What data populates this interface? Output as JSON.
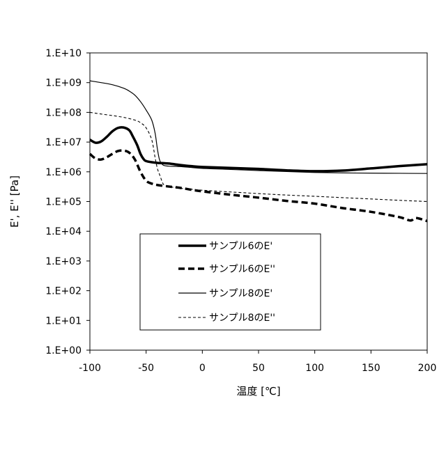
{
  "chart_data": {
    "type": "line",
    "title": "",
    "xlabel": "温度 [℃]",
    "ylabel": "E', E'' [Pa]",
    "xlim": [
      -100,
      200
    ],
    "ylim_log10": [
      0,
      10
    ],
    "y_scale": "log",
    "grid": false,
    "legend_position": "lower-center",
    "x_ticks": [
      "-100",
      "-50",
      "0",
      "50",
      "100",
      "150",
      "200"
    ],
    "y_ticks": [
      "1.E+00",
      "1.E+01",
      "1.E+02",
      "1.E+03",
      "1.E+04",
      "1.E+05",
      "1.E+06",
      "1.E+07",
      "1.E+08",
      "1.E+09",
      "1.E+10"
    ],
    "series": [
      {
        "name": "サンプル6のE'",
        "color": "#000000",
        "style": "solid-thick",
        "x": [
          -100,
          -95,
          -90,
          -85,
          -80,
          -75,
          -70,
          -65,
          -62,
          -58,
          -55,
          -52,
          -50,
          -45,
          -40,
          -30,
          -20,
          -10,
          0,
          25,
          50,
          75,
          100,
          125,
          150,
          175,
          200
        ],
        "y": [
          12000000.0,
          9500000.0,
          10500000.0,
          15000000.0,
          23000000.0,
          30000000.0,
          31000000.0,
          25000000.0,
          16000000.0,
          8000000.0,
          4000000.0,
          2600000.0,
          2300000.0,
          2100000.0,
          2000000.0,
          1900000.0,
          1700000.0,
          1550000.0,
          1450000.0,
          1350000.0,
          1250000.0,
          1120000.0,
          1050000.0,
          1100000.0,
          1300000.0,
          1550000.0,
          1800000.0
        ]
      },
      {
        "name": "サンプル6のE''",
        "color": "#000000",
        "style": "dashed-thick",
        "x": [
          -100,
          -95,
          -90,
          -85,
          -80,
          -75,
          -70,
          -65,
          -60,
          -55,
          -50,
          -45,
          -40,
          -30,
          -20,
          -10,
          0,
          25,
          50,
          75,
          100,
          125,
          150,
          175,
          185,
          190,
          200
        ],
        "y": [
          4000000.0,
          2800000.0,
          2600000.0,
          3100000.0,
          4000000.0,
          5000000.0,
          5200000.0,
          4400000.0,
          2600000.0,
          1000000.0,
          500000.0,
          400000.0,
          360000.0,
          320000.0,
          290000.0,
          250000.0,
          220000.0,
          170000.0,
          135000.0,
          105000.0,
          85000.0,
          60000.0,
          45000.0,
          30000.0,
          23000.0,
          28000.0,
          22000.0
        ]
      },
      {
        "name": "サンプル8のE'",
        "color": "#000000",
        "style": "solid-thin",
        "x": [
          -100,
          -90,
          -80,
          -70,
          -65,
          -60,
          -55,
          -50,
          -45,
          -42,
          -40,
          -38,
          -35,
          -30,
          -20,
          -10,
          0,
          25,
          50,
          75,
          100,
          125,
          150,
          175,
          200
        ],
        "y": [
          1150000000.0,
          1000000000.0,
          850000000.0,
          650000000.0,
          520000000.0,
          380000000.0,
          230000000.0,
          120000000.0,
          55000000.0,
          20000000.0,
          6000000.0,
          2500000.0,
          1700000.0,
          1550000.0,
          1500000.0,
          1400000.0,
          1300000.0,
          1200000.0,
          1100000.0,
          1020000.0,
          950000.0,
          920000.0,
          900000.0,
          890000.0,
          880000.0
        ]
      },
      {
        "name": "サンプル8のE''",
        "color": "#000000",
        "style": "dashed-thin",
        "x": [
          -100,
          -90,
          -80,
          -70,
          -60,
          -55,
          -50,
          -45,
          -42,
          -40,
          -38,
          -35,
          -33,
          -30,
          -20,
          -10,
          0,
          25,
          50,
          75,
          100,
          125,
          150,
          175,
          200
        ],
        "y": [
          100000000.0,
          88000000.0,
          78000000.0,
          68000000.0,
          55000000.0,
          45000000.0,
          30000000.0,
          12000000.0,
          3000000.0,
          1300000.0,
          800000.0,
          400000.0,
          350000.0,
          320000.0,
          280000.0,
          260000.0,
          240000.0,
          210000.0,
          185000.0,
          165000.0,
          150000.0,
          135000.0,
          122000.0,
          110000.0,
          100000.0
        ]
      }
    ]
  }
}
